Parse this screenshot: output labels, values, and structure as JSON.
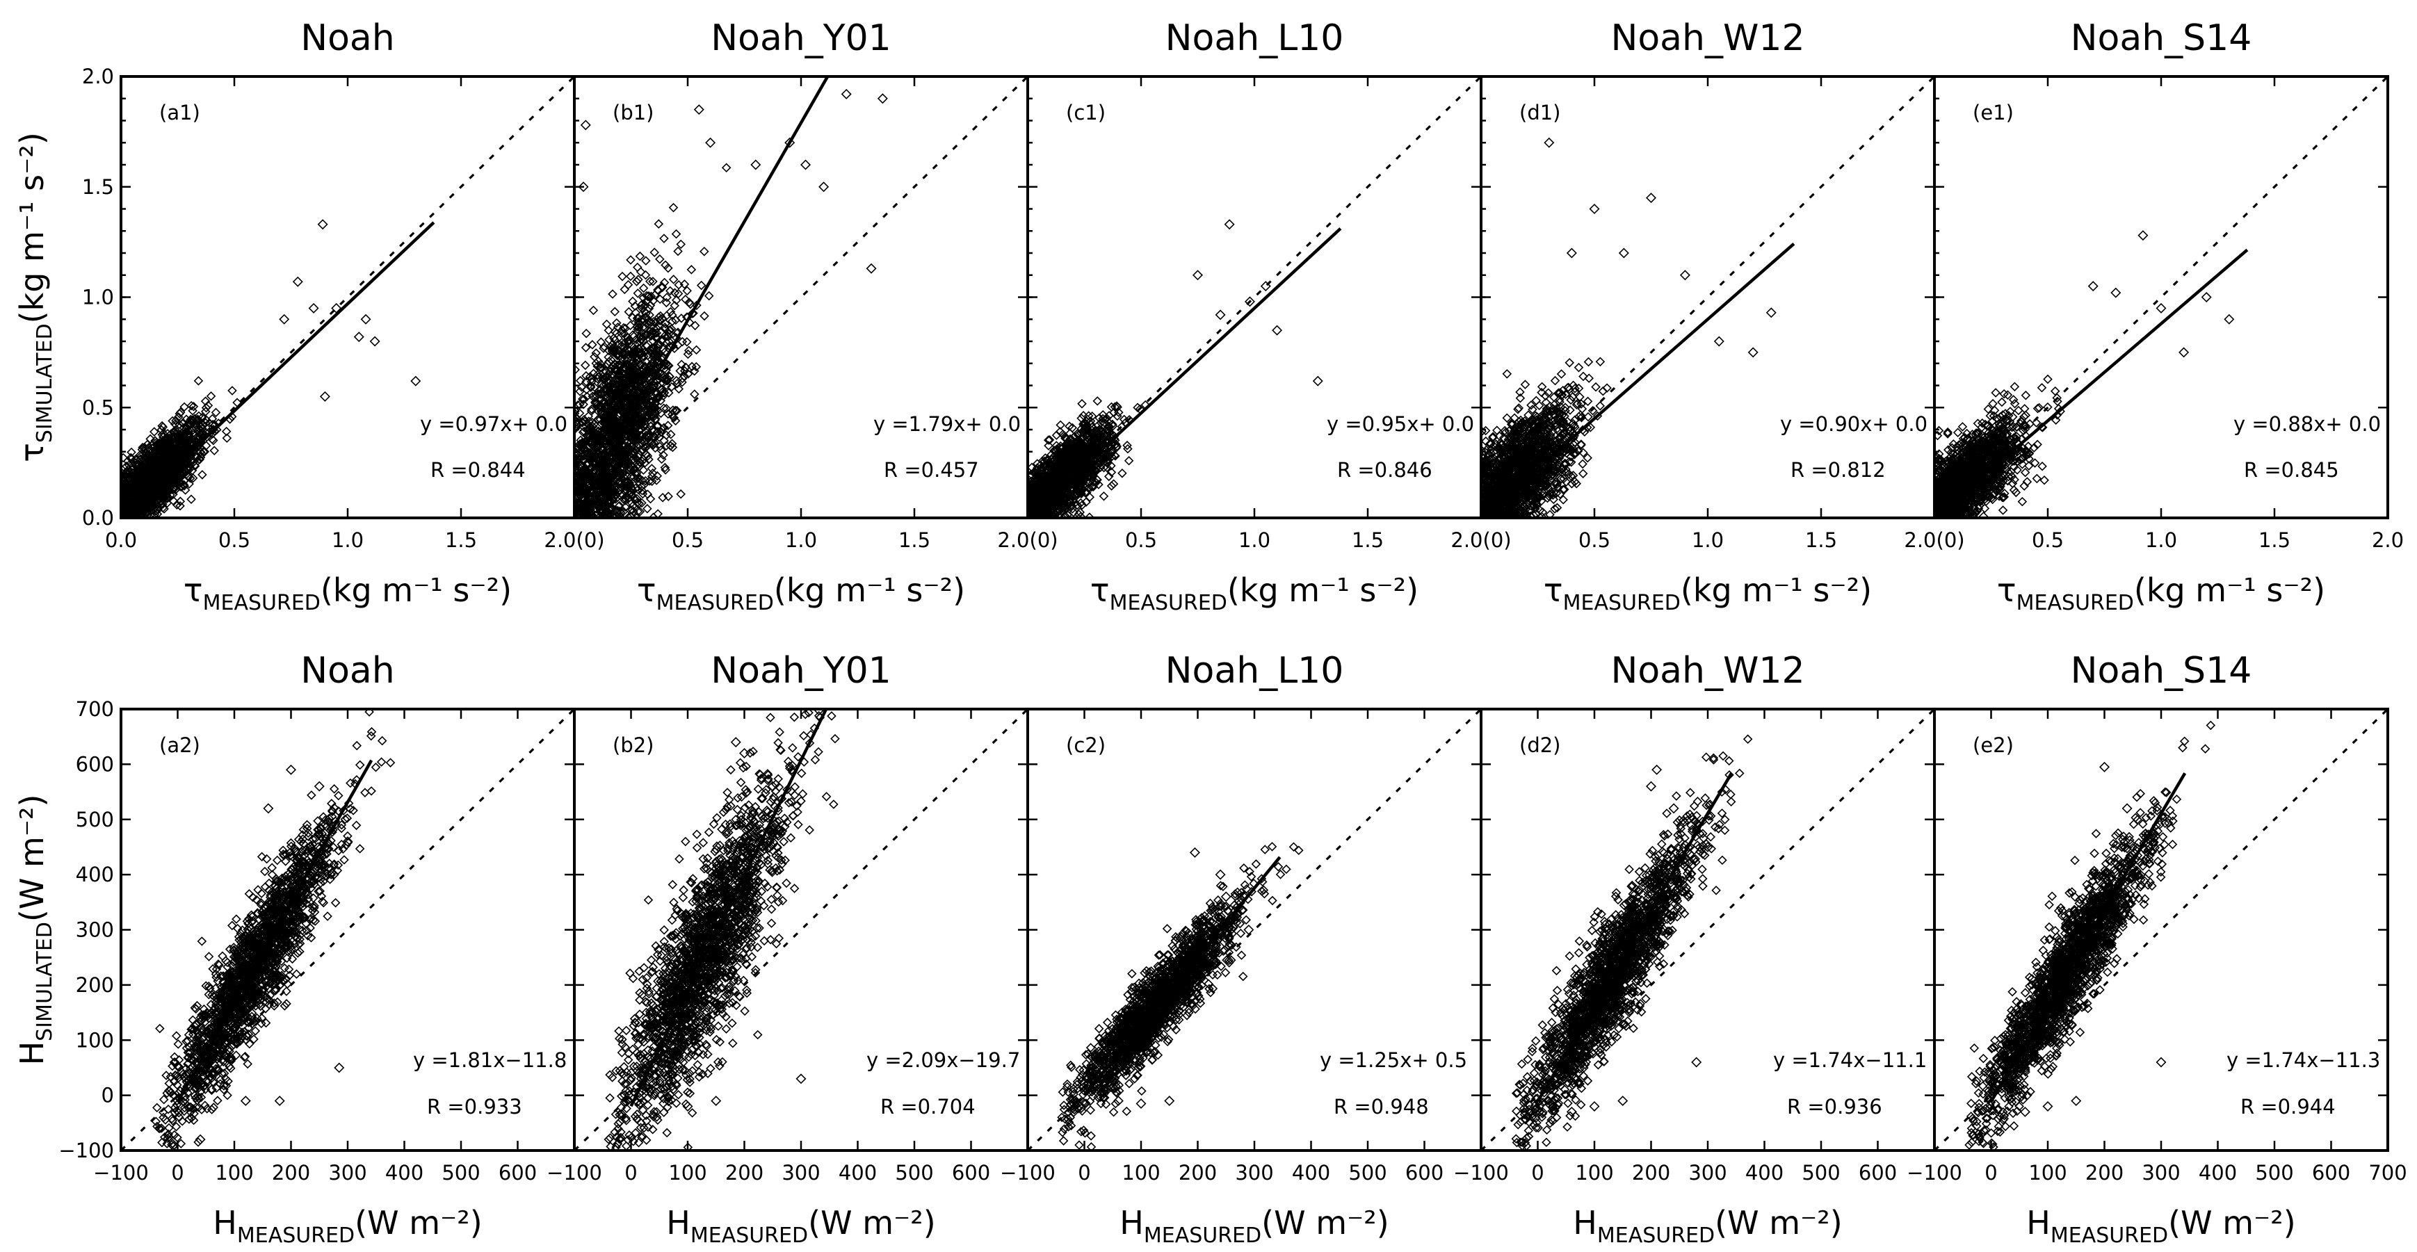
{
  "chart_data": [
    {
      "id": "a1",
      "row": 1,
      "col": 0,
      "type": "scatter",
      "title": "Noah",
      "panel_label": "(a1)",
      "xlabel": "τ",
      "xlabel_sub": "MEASURED",
      "xlabel_unit": "(kg m⁻¹ s⁻²)",
      "ylabel": "τ",
      "ylabel_sub": "SIMULATED",
      "ylabel_unit": "(kg m⁻¹ s⁻²)",
      "xlim": [
        0,
        2
      ],
      "ylim": [
        0,
        2
      ],
      "xticks": [
        "0.0",
        "0.5",
        "1.0",
        "1.5",
        ""
      ],
      "yticks": [
        "0.0",
        "0.5",
        "1.0",
        "1.5",
        "2.0"
      ],
      "fit_text": "y =0.97x+ 0.0",
      "r_text": "R =0.844",
      "fit": {
        "slope": 0.97,
        "intercept": 0.0,
        "x_end": 1.38
      },
      "cloud": {
        "cx": 0.16,
        "cy": 0.2,
        "sx": 0.11,
        "sy": 0.12,
        "rho": 0.75,
        "n": 1400
      },
      "scatter_extra": [
        [
          0.95,
          0.95
        ],
        [
          0.89,
          1.33
        ],
        [
          0.78,
          1.07
        ],
        [
          1.05,
          0.82
        ],
        [
          1.12,
          0.8
        ],
        [
          1.3,
          0.62
        ],
        [
          1.08,
          0.9
        ],
        [
          0.85,
          0.95
        ],
        [
          0.72,
          0.9
        ],
        [
          0.9,
          0.55
        ]
      ]
    },
    {
      "id": "b1",
      "row": 1,
      "col": 1,
      "type": "scatter",
      "title": "Noah_Y01",
      "panel_label": "(b1)",
      "xlabel": "τ",
      "xlabel_sub": "MEASURED",
      "xlabel_unit": "(kg m⁻¹ s⁻²)",
      "xlim": [
        0,
        2
      ],
      "ylim": [
        0,
        2
      ],
      "xticks": [
        "2.0(0)",
        "0.5",
        "1.0",
        "1.5",
        ""
      ],
      "fit_text": "y =1.79x+ 0.0",
      "r_text": "R =0.457",
      "fit": {
        "slope": 1.79,
        "intercept": 0.0,
        "x_end": 1.13
      },
      "cloud": {
        "cx": 0.2,
        "cy": 0.4,
        "sx": 0.13,
        "sy": 0.3,
        "rho": 0.62,
        "n": 1900
      },
      "scatter_extra": [
        [
          1.2,
          1.92
        ],
        [
          1.36,
          1.9
        ],
        [
          1.02,
          1.6
        ],
        [
          0.95,
          1.7
        ],
        [
          1.31,
          1.13
        ],
        [
          0.05,
          1.78
        ],
        [
          0.04,
          1.5
        ],
        [
          0.8,
          1.6
        ],
        [
          0.6,
          1.7
        ],
        [
          0.55,
          1.85
        ],
        [
          1.1,
          1.5
        ]
      ]
    },
    {
      "id": "c1",
      "row": 1,
      "col": 2,
      "type": "scatter",
      "title": "Noah_L10",
      "panel_label": "(c1)",
      "xlabel": "τ",
      "xlabel_sub": "MEASURED",
      "xlabel_unit": "(kg m⁻¹ s⁻²)",
      "xlim": [
        0,
        2
      ],
      "ylim": [
        0,
        2
      ],
      "xticks": [
        "2.0(0)",
        "0.5",
        "1.0",
        "1.5",
        ""
      ],
      "fit_text": "y =0.95x+ 0.0",
      "r_text": "R =0.846",
      "fit": {
        "slope": 0.95,
        "intercept": 0.0,
        "x_end": 1.38
      },
      "cloud": {
        "cx": 0.16,
        "cy": 0.19,
        "sx": 0.11,
        "sy": 0.12,
        "rho": 0.75,
        "n": 1400
      },
      "scatter_extra": [
        [
          0.89,
          1.33
        ],
        [
          1.05,
          1.05
        ],
        [
          0.98,
          0.98
        ],
        [
          1.28,
          0.62
        ],
        [
          0.75,
          1.1
        ],
        [
          1.1,
          0.85
        ],
        [
          0.85,
          0.92
        ]
      ]
    },
    {
      "id": "d1",
      "row": 1,
      "col": 3,
      "type": "scatter",
      "title": "Noah_W12",
      "panel_label": "(d1)",
      "xlabel": "τ",
      "xlabel_sub": "MEASURED",
      "xlabel_unit": "(kg m⁻¹ s⁻²)",
      "xlim": [
        0,
        2
      ],
      "ylim": [
        0,
        2
      ],
      "xticks": [
        "2.0(0)",
        "0.5",
        "1.0",
        "1.5",
        ""
      ],
      "fit_text": "y =0.90x+ 0.0",
      "r_text": "R =0.812",
      "fit": {
        "slope": 0.9,
        "intercept": 0.0,
        "x_end": 1.38
      },
      "cloud": {
        "cx": 0.17,
        "cy": 0.21,
        "sx": 0.13,
        "sy": 0.16,
        "rho": 0.6,
        "n": 1500
      },
      "scatter_extra": [
        [
          0.3,
          1.7
        ],
        [
          0.5,
          1.4
        ],
        [
          0.75,
          1.45
        ],
        [
          0.63,
          1.2
        ],
        [
          1.28,
          0.93
        ],
        [
          1.2,
          0.75
        ],
        [
          0.9,
          1.1
        ],
        [
          0.4,
          1.2
        ],
        [
          1.05,
          0.8
        ]
      ]
    },
    {
      "id": "e1",
      "row": 1,
      "col": 4,
      "type": "scatter",
      "title": "Noah_S14",
      "panel_label": "(e1)",
      "xlabel": "τ",
      "xlabel_sub": "MEASURED",
      "xlabel_unit": "(kg m⁻¹ s⁻²)",
      "xlim": [
        0,
        2
      ],
      "ylim": [
        0,
        2
      ],
      "xticks": [
        "2.0(0)",
        "0.5",
        "1.0",
        "1.5",
        "2.0"
      ],
      "fit_text": "y =0.88x+ 0.0",
      "r_text": "R =0.845",
      "fit": {
        "slope": 0.88,
        "intercept": 0.0,
        "x_end": 1.38
      },
      "cloud": {
        "cx": 0.16,
        "cy": 0.19,
        "sx": 0.12,
        "sy": 0.13,
        "rho": 0.7,
        "n": 1400
      },
      "scatter_extra": [
        [
          0.92,
          1.28
        ],
        [
          1.3,
          0.9
        ],
        [
          1.2,
          1.0
        ],
        [
          0.8,
          1.02
        ],
        [
          1.0,
          0.95
        ],
        [
          1.1,
          0.75
        ],
        [
          0.7,
          1.05
        ]
      ]
    },
    {
      "id": "a2",
      "row": 2,
      "col": 0,
      "type": "scatter",
      "title": "Noah",
      "panel_label": "(a2)",
      "xlabel": "H",
      "xlabel_sub": "MEASURED",
      "xlabel_unit": "(W m⁻²)",
      "ylabel": "H",
      "ylabel_sub": "SIMULATED",
      "ylabel_unit": "(W m⁻²)",
      "xlim": [
        -100,
        700
      ],
      "ylim": [
        -100,
        700
      ],
      "xticks": [
        "−100",
        "0",
        "100",
        "200",
        "300",
        "400",
        "500",
        "600",
        ""
      ],
      "yticks": [
        "−100",
        "0",
        "100",
        "200",
        "300",
        "400",
        "500",
        "600",
        "700"
      ],
      "fit_text": "y =1.81x−11.8",
      "r_text": "R =0.933",
      "fit": {
        "slope": 1.81,
        "intercept": -11.8,
        "x_end": 342
      },
      "cloud": {
        "cx": 130,
        "cy": 220,
        "sx": 75,
        "sy": 135,
        "rho": 0.92,
        "n": 1900
      },
      "scatter_extra": [
        [
          200,
          590
        ],
        [
          160,
          520
        ],
        [
          250,
          560
        ],
        [
          285,
          50
        ],
        [
          180,
          -10
        ],
        [
          120,
          -10
        ],
        [
          60,
          10
        ],
        [
          300,
          460
        ],
        [
          40,
          -80
        ]
      ]
    },
    {
      "id": "b2",
      "row": 2,
      "col": 1,
      "type": "scatter",
      "title": "Noah_Y01",
      "panel_label": "(b2)",
      "xlabel": "H",
      "xlabel_sub": "MEASURED",
      "xlabel_unit": "(W m⁻²)",
      "xlim": [
        -100,
        700
      ],
      "ylim": [
        -100,
        700
      ],
      "xticks": [
        "−100",
        "0",
        "100",
        "200",
        "300",
        "400",
        "500",
        "600",
        ""
      ],
      "fit_text": "y =2.09x−19.7",
      "r_text": "R =0.704",
      "fit": {
        "slope": 2.09,
        "intercept": -19.7,
        "x_end": 345
      },
      "cloud": {
        "cx": 125,
        "cy": 240,
        "sx": 75,
        "sy": 160,
        "rho": 0.85,
        "n": 2000
      },
      "scatter_extra": [
        [
          185,
          640
        ],
        [
          200,
          620
        ],
        [
          300,
          30
        ],
        [
          150,
          -10
        ],
        [
          100,
          -20
        ],
        [
          250,
          560
        ],
        [
          260,
          480
        ]
      ]
    },
    {
      "id": "c2",
      "row": 2,
      "col": 2,
      "type": "scatter",
      "title": "Noah_L10",
      "panel_label": "(c2)",
      "xlabel": "H",
      "xlabel_sub": "MEASURED",
      "xlabel_unit": "(W m⁻²)",
      "xlim": [
        -100,
        700
      ],
      "ylim": [
        -100,
        700
      ],
      "xticks": [
        "−100",
        "0",
        "100",
        "200",
        "300",
        "400",
        "500",
        "600",
        ""
      ],
      "fit_text": "y =1.25x+ 0.5",
      "r_text": "R =0.948",
      "fit": {
        "slope": 1.25,
        "intercept": 0.5,
        "x_end": 345
      },
      "cloud": {
        "cx": 125,
        "cy": 160,
        "sx": 75,
        "sy": 95,
        "rho": 0.93,
        "n": 1800
      },
      "scatter_extra": [
        [
          195,
          440
        ],
        [
          290,
          300
        ],
        [
          250,
          360
        ],
        [
          150,
          -10
        ],
        [
          100,
          -15
        ],
        [
          60,
          -10
        ],
        [
          240,
          400
        ]
      ]
    },
    {
      "id": "d2",
      "row": 2,
      "col": 3,
      "type": "scatter",
      "title": "Noah_W12",
      "panel_label": "(d2)",
      "xlabel": "H",
      "xlabel_sub": "MEASURED",
      "xlabel_unit": "(W m⁻²)",
      "xlim": [
        -100,
        700
      ],
      "ylim": [
        -100,
        700
      ],
      "xticks": [
        "−100",
        "0",
        "100",
        "200",
        "300",
        "400",
        "500",
        "600",
        ""
      ],
      "fit_text": "y =1.74x−11.1",
      "r_text": "R =0.936",
      "fit": {
        "slope": 1.74,
        "intercept": -11.1,
        "x_end": 342
      },
      "cloud": {
        "cx": 130,
        "cy": 215,
        "sx": 75,
        "sy": 130,
        "rho": 0.92,
        "n": 1900
      },
      "scatter_extra": [
        [
          210,
          590
        ],
        [
          240,
          520
        ],
        [
          300,
          450
        ],
        [
          280,
          60
        ],
        [
          150,
          -10
        ],
        [
          100,
          -20
        ],
        [
          60,
          -30
        ],
        [
          200,
          560
        ]
      ]
    },
    {
      "id": "e2",
      "row": 2,
      "col": 4,
      "type": "scatter",
      "title": "Noah_S14",
      "panel_label": "(e2)",
      "xlabel": "H",
      "xlabel_sub": "MEASURED",
      "xlabel_unit": "(W m⁻²)",
      "xlim": [
        -100,
        700
      ],
      "ylim": [
        -100,
        700
      ],
      "xticks": [
        "−100",
        "0",
        "100",
        "200",
        "300",
        "400",
        "500",
        "600",
        "700"
      ],
      "fit_text": "y =1.74x−11.3",
      "r_text": "R =0.944",
      "fit": {
        "slope": 1.74,
        "intercept": -11.3,
        "x_end": 342
      },
      "cloud": {
        "cx": 130,
        "cy": 215,
        "sx": 75,
        "sy": 130,
        "rho": 0.93,
        "n": 1900
      },
      "scatter_extra": [
        [
          200,
          595
        ],
        [
          240,
          520
        ],
        [
          300,
          60
        ],
        [
          290,
          470
        ],
        [
          150,
          -10
        ],
        [
          100,
          -20
        ],
        [
          60,
          -30
        ]
      ]
    }
  ]
}
